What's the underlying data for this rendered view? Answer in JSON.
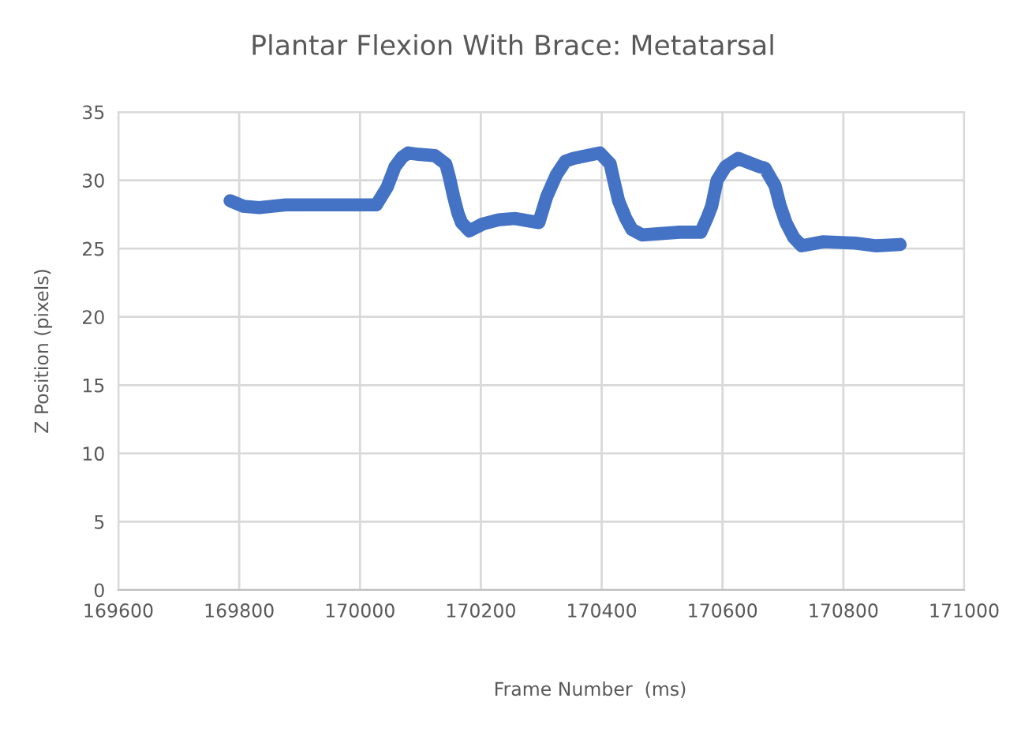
{
  "chart_data": {
    "type": "line",
    "title": "Plantar Flexion With Brace: Metatarsal",
    "xlabel": "Frame Number  (ms)",
    "ylabel": "Z Position (pixels)",
    "series": [
      {
        "color": "#4472c4",
        "x": [
          169785,
          169807,
          169833,
          169877,
          169908,
          170027,
          170045,
          170058,
          170070,
          170080,
          170097,
          170124,
          170142,
          170148,
          170155,
          170162,
          170168,
          170181,
          170203,
          170229,
          170256,
          170296,
          170309,
          170325,
          170340,
          170353,
          170397,
          170414,
          170420,
          170428,
          170440,
          170450,
          170467,
          170529,
          170564,
          170575,
          170582,
          170591,
          170605,
          170626,
          170661,
          170670,
          170687,
          170695,
          170705,
          170718,
          170731,
          170767,
          170820,
          170855,
          170894
        ],
        "values": [
          28.5,
          28.1,
          28.0,
          28.2,
          28.2,
          28.2,
          29.5,
          31.0,
          31.7,
          32.0,
          31.9,
          31.8,
          31.2,
          30.2,
          28.8,
          27.6,
          26.9,
          26.3,
          26.8,
          27.1,
          27.2,
          26.9,
          28.8,
          30.4,
          31.4,
          31.6,
          32.0,
          31.2,
          30.0,
          28.5,
          27.2,
          26.4,
          26.0,
          26.2,
          26.2,
          27.3,
          28.1,
          30.0,
          31.0,
          31.6,
          31.0,
          30.9,
          29.6,
          28.2,
          26.9,
          25.8,
          25.2,
          25.5,
          25.4,
          25.2,
          25.3
        ]
      }
    ],
    "xlim": [
      169600,
      171000
    ],
    "xticks": [
      169600,
      169800,
      170000,
      170200,
      170400,
      170600,
      170800,
      171000
    ],
    "ylim": [
      0,
      35
    ],
    "yticks": [
      0,
      5,
      10,
      15,
      20,
      25,
      30,
      35
    ],
    "grid": true,
    "legend": false,
    "marker": "none",
    "line_style": "solid"
  }
}
